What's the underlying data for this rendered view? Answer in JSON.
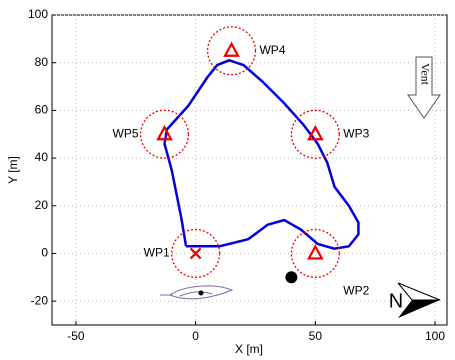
{
  "chart_data": {
    "type": "line",
    "xlabel": "X [m]",
    "ylabel": "Y [m]",
    "xlim": [
      -60,
      105
    ],
    "ylim": [
      -30,
      100
    ],
    "xticks": [
      -50,
      0,
      50,
      100
    ],
    "yticks": [
      -20,
      0,
      20,
      40,
      60,
      80,
      100
    ],
    "grid": true,
    "series": [
      {
        "color": "#0000dd",
        "x": [
          -4,
          0,
          10,
          22,
          30,
          37,
          44,
          51,
          58,
          64,
          68,
          68,
          64,
          58,
          55,
          51,
          45,
          37,
          28,
          20,
          14,
          9,
          5,
          -3,
          -12,
          -13,
          -10,
          -6,
          -4
        ],
        "y": [
          3,
          3,
          3,
          6,
          12,
          14,
          10,
          4,
          2,
          3,
          8,
          13,
          20,
          28,
          38,
          46,
          54,
          63,
          72,
          79,
          81,
          79,
          74,
          62,
          52,
          46,
          35,
          15,
          3
        ]
      }
    ],
    "waypoints": {
      "names": [
        "WP1",
        "WP2",
        "WP3",
        "WP4",
        "WP5"
      ],
      "x": [
        0,
        50,
        50,
        15,
        -13
      ],
      "y": [
        0,
        0,
        50,
        85,
        50
      ],
      "markers": [
        "x",
        "triangle",
        "triangle",
        "triangle",
        "triangle"
      ],
      "radius": 10,
      "color": "#ee0000"
    },
    "obstacle": {
      "x": 40,
      "y": -10,
      "color": "#000000"
    },
    "wind_label": "Vent",
    "north_label": "N"
  }
}
